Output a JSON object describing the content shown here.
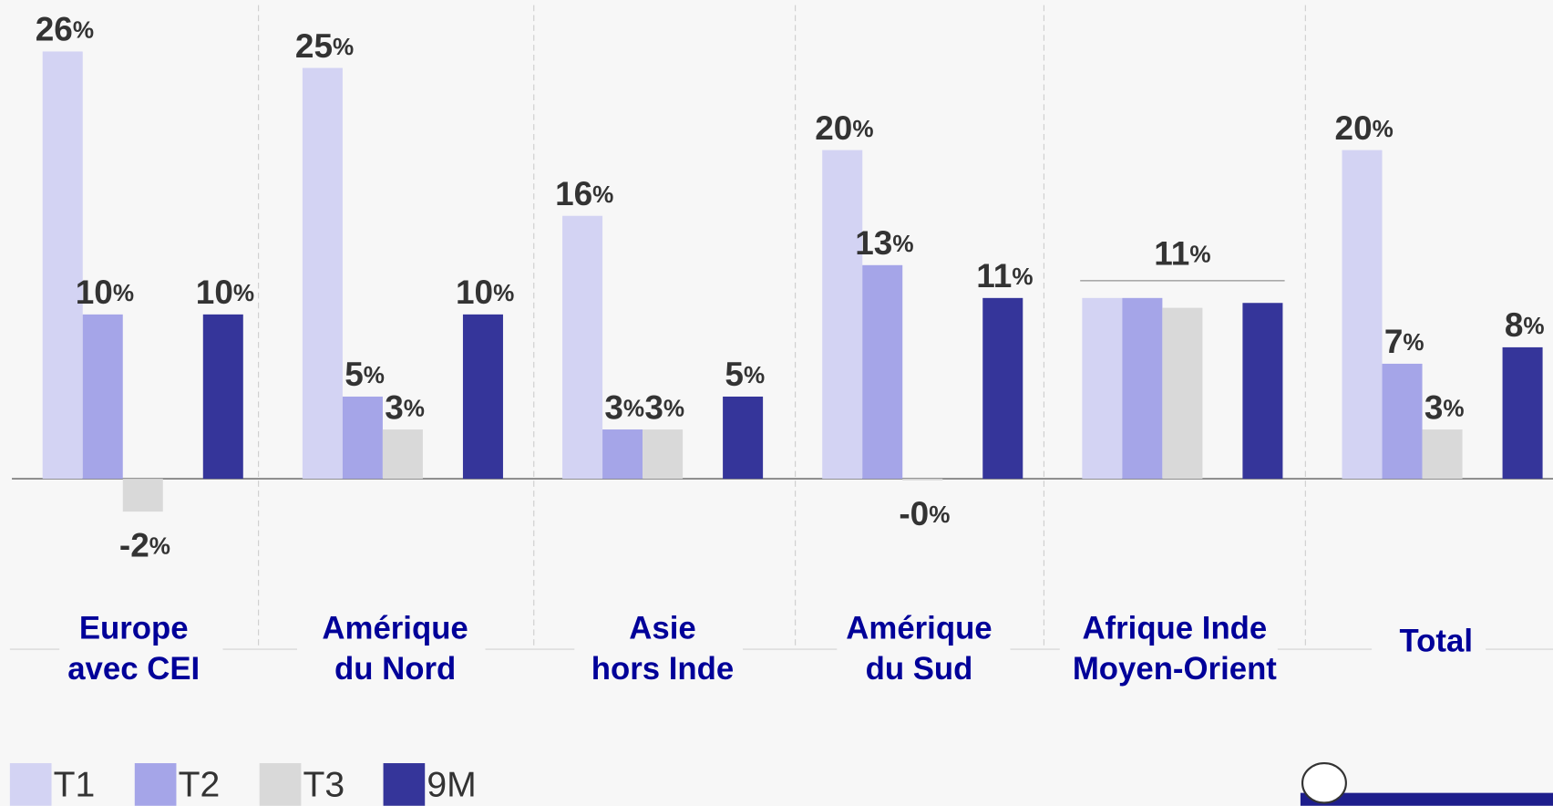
{
  "chart_data": {
    "type": "bar",
    "categories": [
      [
        "Europe",
        "avec CEI"
      ],
      [
        "Amérique",
        "du Nord"
      ],
      [
        "Asie",
        "hors Inde"
      ],
      [
        "Amérique",
        "du Sud"
      ],
      [
        "Afrique Inde",
        "Moyen-Orient"
      ],
      [
        "Total"
      ]
    ],
    "series": [
      {
        "name": "T1",
        "color": "#d3d3f3",
        "values": [
          26,
          25,
          16,
          20,
          11,
          20
        ],
        "value_labels": [
          "26%",
          "25%",
          "16%",
          "20%",
          null,
          "20%"
        ]
      },
      {
        "name": "T2",
        "color": "#a5a5e8",
        "values": [
          10,
          5,
          3,
          13,
          11,
          7
        ],
        "value_labels": [
          "10%",
          "5%",
          "3%",
          "13%",
          null,
          "7%"
        ]
      },
      {
        "name": "T3",
        "color": "#d9d9d9",
        "values": [
          -2,
          3,
          3,
          -0.1,
          10.4,
          3
        ],
        "value_labels": [
          "-2%",
          "3%",
          "3%",
          "-0%",
          null,
          "3%"
        ]
      },
      {
        "name": "9M",
        "color": "#35359a",
        "values": [
          10,
          10,
          5,
          11,
          10.7,
          8
        ],
        "value_labels": [
          "10%",
          "10%",
          "5%",
          "11%",
          null,
          "8%"
        ]
      }
    ],
    "annotations": [
      {
        "text": "11%"
      }
    ],
    "ylim": [
      -8,
      29
    ]
  }
}
